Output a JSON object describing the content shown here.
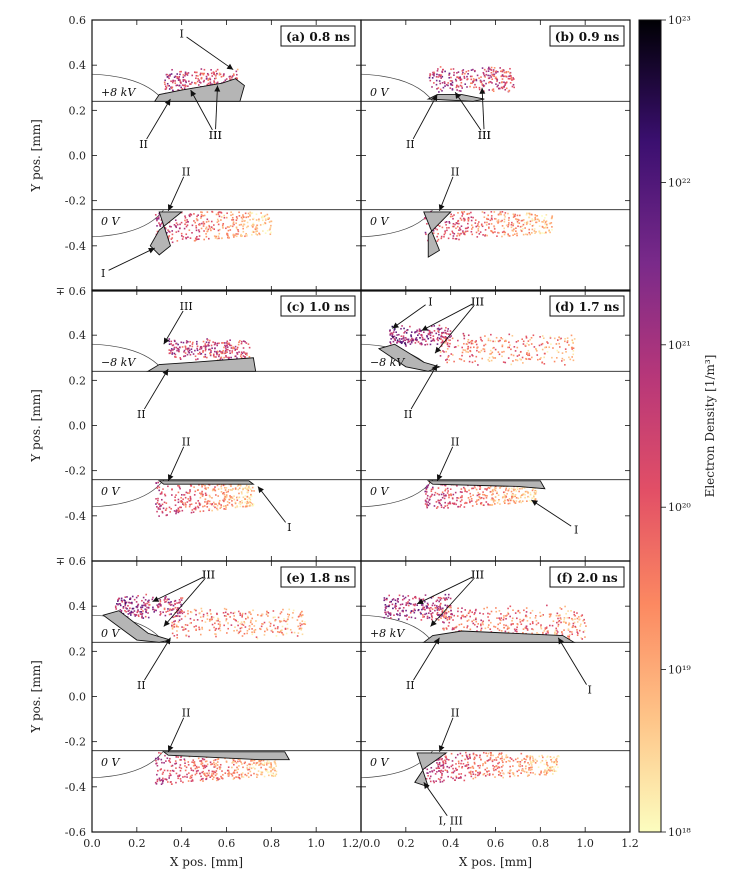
{
  "chart_data": {
    "type": "heatmap",
    "xlabel": "X pos. [mm]",
    "ylabel": "Y pos. [mm]",
    "xlim": [
      0.0,
      1.2
    ],
    "ylim": [
      -0.6,
      0.6
    ],
    "x_ticks": [
      "0.0",
      "0.2",
      "0.4",
      "0.6",
      "0.8",
      "1.0",
      "1.2/0.0",
      "0.2",
      "0.4",
      "0.6",
      "0.8",
      "1.0",
      "1.2"
    ],
    "y_ticks_top": [
      "0.6",
      "0.4",
      "0.2",
      "0.0",
      "-0.2",
      "-0.4",
      "∓ 0.6"
    ],
    "y_ticks_mid": [
      "0.4",
      "0.2",
      "0.0",
      "-0.2",
      "-0.4",
      "∓ 0.6"
    ],
    "y_ticks_bot": [
      "0.4",
      "0.2",
      "0.0",
      "-0.2",
      "-0.4",
      "-0.6"
    ],
    "colorbar": {
      "label": "Electron Density [1/m³]",
      "ticks": [
        "10¹⁸",
        "10¹⁹",
        "10²⁰",
        "10²¹",
        "10²²",
        "10²³"
      ],
      "log_range": [
        18,
        23
      ],
      "colors": [
        "#fcfdbf",
        "#fec488",
        "#fc8961",
        "#e24f66",
        "#b73779",
        "#7a2a8a",
        "#3b0f70",
        "#000004"
      ]
    },
    "panels": [
      {
        "id": "a",
        "title": "(a) 0.8 ns",
        "top_voltage": "+8 kV",
        "bottom_voltage": "0 V",
        "annotations": [
          {
            "text": "I",
            "region": "top",
            "x": 0.4,
            "y": 0.54,
            "tx": 0.63,
            "ty": 0.38
          },
          {
            "text": "II",
            "region": "top",
            "x": 0.23,
            "y": 0.05,
            "tx": 0.35,
            "ty": 0.25
          },
          {
            "text": "III",
            "region": "top",
            "x": 0.55,
            "y": 0.09,
            "tx": 0.44,
            "ty": 0.29
          },
          {
            "text": "III",
            "region": "top",
            "x": 0.55,
            "y": 0.09,
            "tx": 0.56,
            "ty": 0.31
          },
          {
            "text": "II",
            "region": "bot",
            "x": 0.42,
            "y": -0.07,
            "tx": 0.34,
            "ty": -0.245
          },
          {
            "text": "I",
            "region": "bot",
            "x": 0.05,
            "y": -0.52,
            "tx": 0.28,
            "ty": -0.41
          }
        ]
      },
      {
        "id": "b",
        "title": "(b) 0.9 ns",
        "top_voltage": "0 V",
        "bottom_voltage": "0 V",
        "annotations": [
          {
            "text": "II",
            "region": "top",
            "x": 0.22,
            "y": 0.05,
            "tx": 0.34,
            "ty": 0.27
          },
          {
            "text": "III",
            "region": "top",
            "x": 0.55,
            "y": 0.09,
            "tx": 0.42,
            "ty": 0.28
          },
          {
            "text": "III",
            "region": "top",
            "x": 0.55,
            "y": 0.09,
            "tx": 0.54,
            "ty": 0.3
          },
          {
            "text": "II",
            "region": "bot",
            "x": 0.42,
            "y": -0.07,
            "tx": 0.35,
            "ty": -0.245
          }
        ]
      },
      {
        "id": "c",
        "title": "(c) 1.0 ns",
        "top_voltage": "−8 kV",
        "bottom_voltage": "0 V",
        "annotations": [
          {
            "text": "III",
            "region": "top",
            "x": 0.42,
            "y": 0.53,
            "tx": 0.32,
            "ty": 0.36
          },
          {
            "text": "II",
            "region": "top",
            "x": 0.22,
            "y": 0.05,
            "tx": 0.34,
            "ty": 0.25
          },
          {
            "text": "II",
            "region": "bot",
            "x": 0.42,
            "y": -0.07,
            "tx": 0.34,
            "ty": -0.245
          },
          {
            "text": "I",
            "region": "bot",
            "x": 0.88,
            "y": -0.45,
            "tx": 0.74,
            "ty": -0.27
          }
        ]
      },
      {
        "id": "d",
        "title": "(d) 1.7 ns",
        "top_voltage": "−8 kV",
        "bottom_voltage": "0 V",
        "annotations": [
          {
            "text": "I",
            "region": "top",
            "x": 0.31,
            "y": 0.55,
            "tx": 0.14,
            "ty": 0.43
          },
          {
            "text": "III",
            "region": "top",
            "x": 0.52,
            "y": 0.55,
            "tx": 0.27,
            "ty": 0.42
          },
          {
            "text": "III",
            "region": "top",
            "x": 0.52,
            "y": 0.55,
            "tx": 0.33,
            "ty": 0.32
          },
          {
            "text": "II",
            "region": "top",
            "x": 0.21,
            "y": 0.05,
            "tx": 0.34,
            "ty": 0.27
          },
          {
            "text": "II",
            "region": "bot",
            "x": 0.42,
            "y": -0.07,
            "tx": 0.34,
            "ty": -0.245
          },
          {
            "text": "I",
            "region": "bot",
            "x": 0.96,
            "y": -0.46,
            "tx": 0.76,
            "ty": -0.33
          }
        ]
      },
      {
        "id": "e",
        "title": "(e) 1.8 ns",
        "top_voltage": "0 V",
        "bottom_voltage": "0 V",
        "annotations": [
          {
            "text": "III",
            "region": "top",
            "x": 0.52,
            "y": 0.54,
            "tx": 0.27,
            "ty": 0.42
          },
          {
            "text": "III",
            "region": "top",
            "x": 0.52,
            "y": 0.54,
            "tx": 0.32,
            "ty": 0.31
          },
          {
            "text": "II",
            "region": "top",
            "x": 0.22,
            "y": 0.05,
            "tx": 0.35,
            "ty": 0.26
          },
          {
            "text": "II",
            "region": "bot",
            "x": 0.42,
            "y": -0.07,
            "tx": 0.34,
            "ty": -0.245
          }
        ]
      },
      {
        "id": "f",
        "title": "(f) 2.0 ns",
        "top_voltage": "+8 kV",
        "bottom_voltage": "0 V",
        "annotations": [
          {
            "text": "III",
            "region": "top",
            "x": 0.52,
            "y": 0.54,
            "tx": 0.25,
            "ty": 0.41
          },
          {
            "text": "III",
            "region": "top",
            "x": 0.52,
            "y": 0.54,
            "tx": 0.31,
            "ty": 0.31
          },
          {
            "text": "II",
            "region": "top",
            "x": 0.22,
            "y": 0.05,
            "tx": 0.35,
            "ty": 0.26
          },
          {
            "text": "I",
            "region": "top",
            "x": 1.02,
            "y": 0.03,
            "tx": 0.88,
            "ty": 0.26
          },
          {
            "text": "II",
            "region": "bot",
            "x": 0.42,
            "y": -0.07,
            "tx": 0.35,
            "ty": -0.245
          },
          {
            "text": "I, III",
            "region": "bot",
            "x": 0.4,
            "y": -0.55,
            "tx": 0.28,
            "ty": -0.38
          }
        ]
      }
    ]
  }
}
